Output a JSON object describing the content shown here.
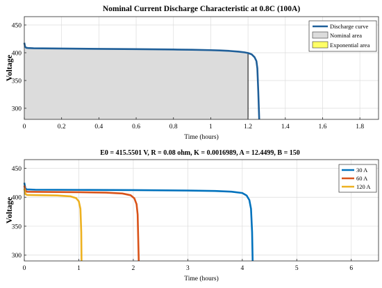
{
  "chart_data": [
    {
      "type": "area",
      "title": "Nominal Current Discharge Characteristic at 0.8C (100A)",
      "xlabel": "Time (hours)",
      "ylabel": "Voltage",
      "xlim": [
        0,
        1.9
      ],
      "ylim": [
        280,
        465
      ],
      "xticks": [
        0,
        0.2,
        0.4,
        0.6,
        0.8,
        1.0,
        1.2,
        1.4,
        1.6,
        1.8
      ],
      "xtick_labels": [
        "0",
        "0.2",
        "0.4",
        "0.6",
        "0.8",
        "1",
        "1.2",
        "1.4",
        "1.6",
        "1.8"
      ],
      "yticks": [
        300,
        350,
        400,
        450
      ],
      "grid": true,
      "legend_position": "top-right",
      "series": [
        {
          "name": "Discharge curve",
          "color": "#1f5f99",
          "x": [
            0,
            0.004,
            0.01,
            0.02,
            0.05,
            0.2,
            0.4,
            0.6,
            0.8,
            0.9,
            1.0,
            1.05,
            1.1,
            1.15,
            1.18,
            1.2,
            1.22,
            1.235,
            1.245,
            1.25,
            1.255,
            1.26
          ],
          "y": [
            418,
            411,
            409,
            408.5,
            408,
            407.6,
            407,
            406.5,
            405.8,
            405.4,
            404.7,
            404.1,
            403.3,
            402,
            400.8,
            399.5,
            397,
            392,
            385,
            372,
            330,
            280
          ]
        },
        {
          "name": "Nominal area",
          "color": "#dcdcdc",
          "x": [
            0,
            0.004,
            0.01,
            0.02,
            0.05,
            0.2,
            0.4,
            0.6,
            0.8,
            0.9,
            1.0,
            1.05,
            1.1,
            1.15,
            1.18,
            1.2
          ],
          "y": [
            418,
            411,
            409,
            408.5,
            408,
            407.6,
            407,
            406.5,
            405.8,
            405.4,
            404.7,
            404.1,
            403.3,
            402,
            400.8,
            399.5
          ]
        },
        {
          "name": "Exponential area",
          "color": "#ffff66",
          "x": [],
          "y": []
        }
      ]
    },
    {
      "type": "line",
      "title": "E0 = 415.5501 V, R = 0.08 ohm, K = 0.0016989, A = 12.4499, B = 150",
      "xlabel": "Time (hours)",
      "ylabel": "Voltage",
      "xlim": [
        0,
        6.5
      ],
      "ylim": [
        290,
        465
      ],
      "xticks": [
        0,
        1,
        2,
        3,
        4,
        5,
        6
      ],
      "xtick_labels": [
        "0",
        "1",
        "2",
        "3",
        "4",
        "5",
        "6"
      ],
      "yticks": [
        300,
        350,
        400,
        450
      ],
      "grid": true,
      "legend_position": "top-right",
      "series": [
        {
          "name": "30 A",
          "color": "#0072bd",
          "x": [
            0,
            0.02,
            0.05,
            0.2,
            1.0,
            2.0,
            3.0,
            3.5,
            3.8,
            4.0,
            4.08,
            4.13,
            4.16,
            4.18,
            4.19
          ],
          "y": [
            425,
            415,
            413.5,
            413,
            412.7,
            412.3,
            411.6,
            410.8,
            409.6,
            407.3,
            403,
            395,
            380,
            340,
            290
          ]
        },
        {
          "name": "60 A",
          "color": "#d95319",
          "x": [
            0,
            0.02,
            0.05,
            0.2,
            1.0,
            1.5,
            1.8,
            1.95,
            2.02,
            2.06,
            2.08,
            2.09,
            2.1
          ],
          "y": [
            420,
            411,
            409.5,
            409.3,
            408.7,
            408,
            406.5,
            403.5,
            398,
            388,
            370,
            330,
            290
          ]
        },
        {
          "name": "120 A",
          "color": "#edb120",
          "x": [
            0,
            0.02,
            0.05,
            0.2,
            0.6,
            0.85,
            0.95,
            1.0,
            1.03,
            1.045,
            1.05
          ],
          "y": [
            415,
            405.5,
            404,
            403.6,
            403,
            401.5,
            398.5,
            393,
            380,
            340,
            290
          ]
        }
      ]
    }
  ]
}
